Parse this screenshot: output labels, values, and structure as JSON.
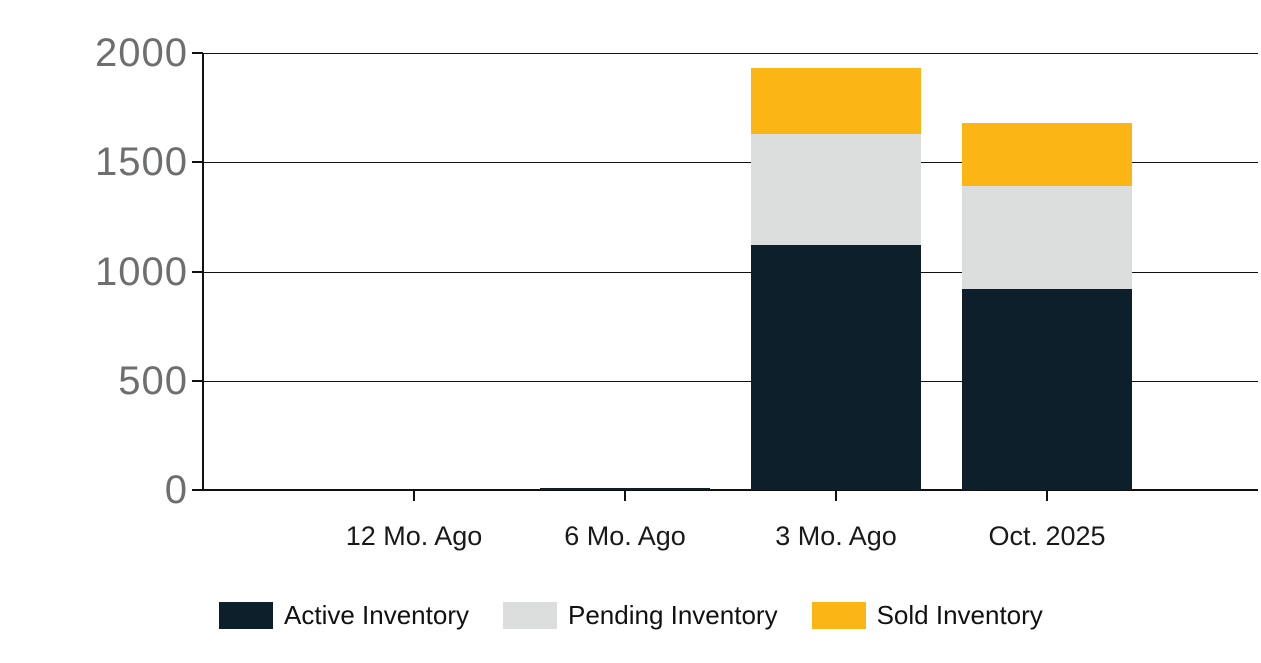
{
  "chart_data": {
    "type": "bar",
    "stacked": true,
    "title": "",
    "categories": [
      "12 Mo. Ago",
      "6 Mo. Ago",
      "3 Mo. Ago",
      "Oct. 2025"
    ],
    "series": [
      {
        "name": "Active Inventory",
        "color": "#0C1F2B",
        "values": [
          0,
          10,
          1120,
          920
        ]
      },
      {
        "name": "Pending Inventory",
        "color": "#DCDDDD",
        "values": [
          0,
          0,
          510,
          470
        ]
      },
      {
        "name": "Sold Inventory",
        "color": "#FBB616",
        "values": [
          0,
          0,
          300,
          290
        ]
      }
    ],
    "ylim": [
      0,
      2000
    ],
    "yticks": [
      0,
      500,
      1000,
      1500,
      2000
    ],
    "grid": true,
    "legend_position": "bottom",
    "axis_color": "#111111",
    "y_label_color": "#6d6e6e",
    "x_label_color": "#191919",
    "background_color": "#ffffff"
  }
}
